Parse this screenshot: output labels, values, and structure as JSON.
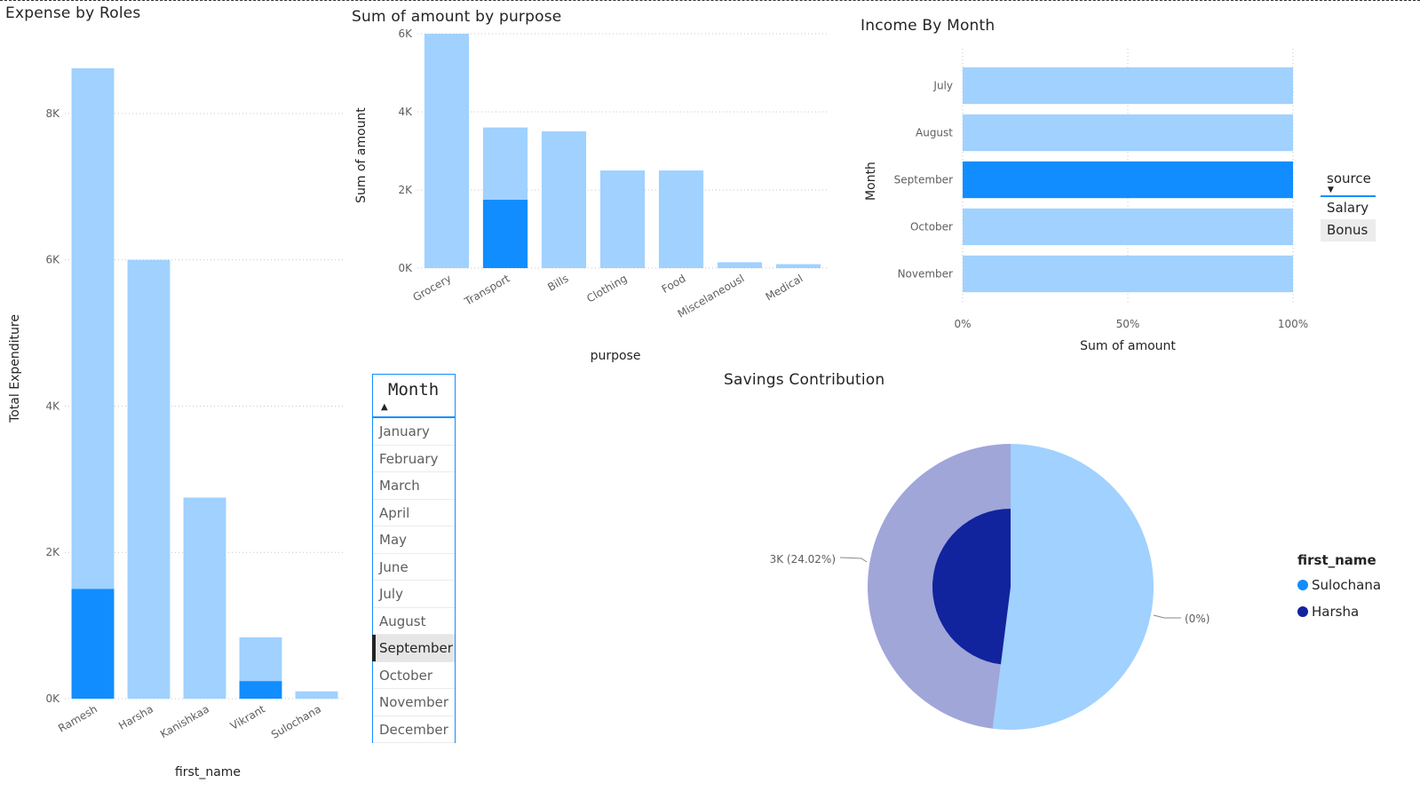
{
  "colors": {
    "light": "#a0d1ff",
    "dark": "#118dff",
    "navy": "#12239e",
    "lavender": "#a0a6d8",
    "pie_light": "#a0d1ff"
  },
  "chart_data": [
    {
      "id": "expense_by_roles",
      "type": "bar",
      "title": "Expense by Roles",
      "xlabel": "first_name",
      "ylabel": "Total Expenditure",
      "categories": [
        "Ramesh",
        "Harsha",
        "Kanishkaa",
        "Vikrant",
        "Sulochana"
      ],
      "series": [
        {
          "values": [
            8620,
            6000,
            2750,
            840,
            100
          ]
        },
        {
          "values": [
            1500,
            0,
            0,
            240,
            0
          ]
        }
      ],
      "ylim": [
        0,
        8800
      ],
      "yticks": [
        0,
        2000,
        4000,
        6000,
        8000
      ],
      "ytick_labels": [
        "0K",
        "2K",
        "4K",
        "6K",
        "8K"
      ],
      "grid": true
    },
    {
      "id": "sum_by_purpose",
      "type": "bar",
      "title": "Sum of amount by purpose",
      "xlabel": "purpose",
      "ylabel": "Sum of amount",
      "categories": [
        "Grocery",
        "Transport",
        "Bills",
        "Clothing",
        "Food",
        "Miscelaneousl",
        "Medical"
      ],
      "series": [
        {
          "values": [
            6000,
            3600,
            3500,
            2500,
            2500,
            150,
            100
          ]
        },
        {
          "values": [
            0,
            1750,
            0,
            0,
            0,
            0,
            0
          ]
        }
      ],
      "ylim": [
        0,
        6000
      ],
      "yticks": [
        0,
        2000,
        4000,
        6000
      ],
      "ytick_labels": [
        "0K",
        "2K",
        "4K",
        "6K"
      ],
      "grid": true
    },
    {
      "id": "income_by_month",
      "type": "bar",
      "orientation": "horizontal",
      "stacking": "100%",
      "title": "Income By Month",
      "xlabel": "Sum of amount",
      "ylabel": "Month",
      "categories": [
        "July",
        "August",
        "September",
        "October",
        "November"
      ],
      "values": [
        100,
        100,
        100,
        100,
        100
      ],
      "highlighted": "September",
      "xticks": [
        0,
        50,
        100
      ],
      "xtick_labels": [
        "0%",
        "50%",
        "100%"
      ],
      "legend": {
        "title": "source",
        "entries": [
          "Salary",
          "Bonus"
        ],
        "placement": "right"
      },
      "grid": true
    },
    {
      "id": "savings_contribution",
      "type": "pie",
      "title": "Savings Contribution",
      "slices": [
        {
          "value": 52,
          "color": "#a0d1ff"
        },
        {
          "value": 48,
          "color": "#a0a6d8"
        }
      ],
      "highlight": {
        "value": 24.02,
        "color": "#12239e"
      },
      "data_labels": [
        "3K (24.02%)",
        "(0%)"
      ],
      "legend": {
        "title": "first_name",
        "entries": [
          {
            "name": "Sulochana",
            "color": "#118dff"
          },
          {
            "name": "Harsha",
            "color": "#12239e"
          }
        ],
        "placement": "right"
      }
    }
  ],
  "slicer": {
    "title": "Month",
    "sort_icon": "sort-ascending-icon",
    "items": [
      "January",
      "February",
      "March",
      "April",
      "May",
      "June",
      "July",
      "August",
      "September",
      "October",
      "November",
      "December"
    ],
    "selected": "September"
  }
}
